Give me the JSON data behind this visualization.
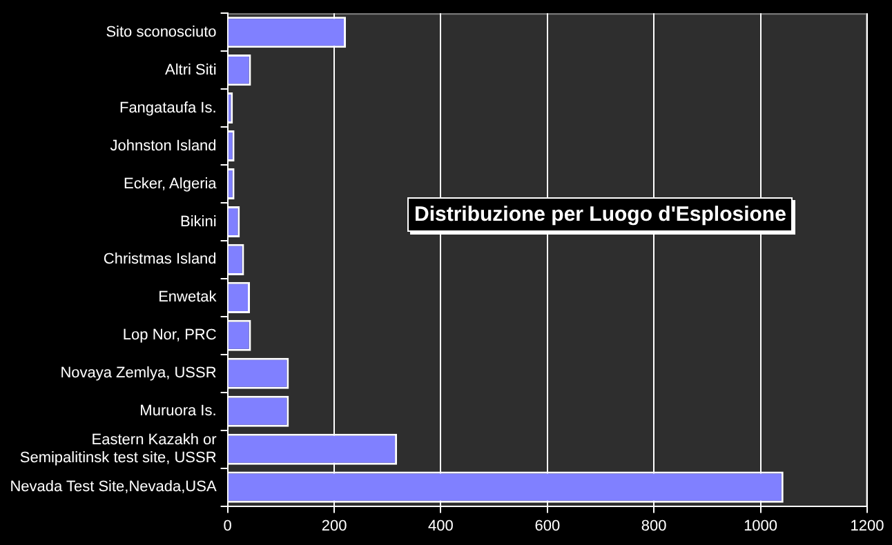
{
  "chart_data": {
    "type": "bar",
    "orientation": "horizontal",
    "title": "Distribuzione per Luogo d'Esplosione",
    "categories": [
      "Sito sconosciuto",
      "Altri Siti",
      "Fangataufa Is.",
      "Johnston Island",
      "Ecker, Algeria",
      "Bikini",
      "Christmas Island",
      "Enwetak",
      "Lop Nor, PRC",
      "Novaya Zemlya, USSR",
      "Muruora Is.",
      "Eastern Kazakh or Semipalitinsk test site, USSR",
      "Nevada Test Site,Nevada,USA"
    ],
    "values": [
      222,
      44,
      10,
      13,
      13,
      23,
      31,
      42,
      44,
      115,
      115,
      318,
      1043
    ],
    "color": "#8080ff",
    "xlim": [
      0,
      1200
    ],
    "xticks": [
      0,
      200,
      400,
      600,
      800,
      1000,
      1200
    ],
    "grid": "x",
    "legend": false
  }
}
